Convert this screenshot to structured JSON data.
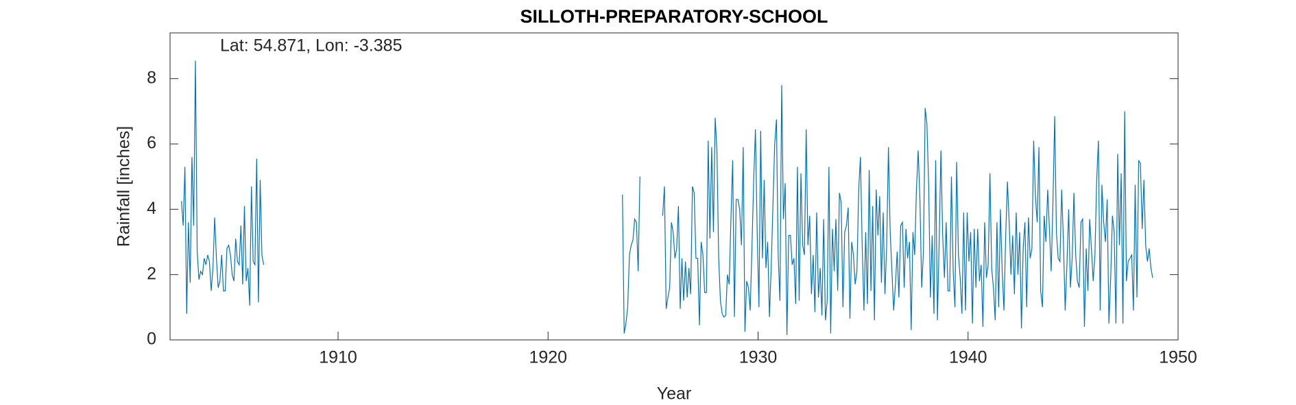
{
  "chart_data": {
    "type": "line",
    "title": "SILLOTH-PREPARATORY-SCHOOL",
    "annotation": "Lat: 54.871, Lon: -3.385",
    "xlabel": "Year",
    "ylabel": "Rainfall [inches]",
    "xlim": [
      1902,
      1950
    ],
    "ylim": [
      0,
      9.4
    ],
    "xticks": [
      1910,
      1920,
      1930,
      1940,
      1950
    ],
    "yticks": [
      0,
      2,
      4,
      6,
      8
    ],
    "x": [
      1902.542,
      1902.625,
      1902.708,
      1902.792,
      1902.875,
      1902.958,
      1903.042,
      1903.125,
      1903.208,
      1903.292,
      1903.375,
      1903.458,
      1903.542,
      1903.625,
      1903.708,
      1903.792,
      1903.875,
      1903.958,
      1904.042,
      1904.125,
      1904.208,
      1904.292,
      1904.375,
      1904.458,
      1904.542,
      1904.625,
      1904.708,
      1904.792,
      1904.875,
      1904.958,
      1905.042,
      1905.125,
      1905.208,
      1905.292,
      1905.375,
      1905.458,
      1905.542,
      1905.625,
      1905.708,
      1905.792,
      1905.875,
      1905.958,
      1906.042,
      1906.125,
      1906.208,
      1906.292,
      1906.375,
      1906.458,
      1914,
      1923.542,
      1923.625,
      1923.708,
      1923.792,
      1923.875,
      1923.958,
      1924.042,
      1924.125,
      1924.208,
      1924.292,
      1924.375,
      1925,
      1925.458,
      1925.542,
      1925.625,
      1925.708,
      1925.792,
      1925.875,
      1925.958,
      1926.042,
      1926.125,
      1926.208,
      1926.292,
      1926.375,
      1926.458,
      1926.542,
      1926.625,
      1926.708,
      1926.792,
      1926.875,
      1926.958,
      1927.042,
      1927.125,
      1927.208,
      1927.292,
      1927.375,
      1927.458,
      1927.542,
      1927.625,
      1927.708,
      1927.792,
      1927.875,
      1927.958,
      1928.042,
      1928.125,
      1928.208,
      1928.292,
      1928.375,
      1928.458,
      1928.542,
      1928.625,
      1928.708,
      1928.792,
      1928.875,
      1928.958,
      1929.042,
      1929.125,
      1929.208,
      1929.292,
      1929.375,
      1929.458,
      1929.542,
      1929.625,
      1929.708,
      1929.792,
      1929.875,
      1929.958,
      1930.042,
      1930.125,
      1930.208,
      1930.292,
      1930.375,
      1930.458,
      1930.542,
      1930.625,
      1930.708,
      1930.792,
      1930.875,
      1930.958,
      1931.042,
      1931.125,
      1931.208,
      1931.292,
      1931.375,
      1931.458,
      1931.542,
      1931.625,
      1931.708,
      1931.792,
      1931.875,
      1931.958,
      1932.042,
      1932.125,
      1932.208,
      1932.292,
      1932.375,
      1932.458,
      1932.542,
      1932.625,
      1932.708,
      1932.792,
      1932.875,
      1932.958,
      1933.042,
      1933.125,
      1933.208,
      1933.292,
      1933.375,
      1933.458,
      1933.542,
      1933.625,
      1933.708,
      1933.792,
      1933.875,
      1933.958,
      1934.042,
      1934.125,
      1934.208,
      1934.292,
      1934.375,
      1934.458,
      1934.542,
      1934.625,
      1934.708,
      1934.792,
      1934.875,
      1934.958,
      1935.042,
      1935.125,
      1935.208,
      1935.292,
      1935.375,
      1935.458,
      1935.542,
      1935.625,
      1935.708,
      1935.792,
      1935.875,
      1935.958,
      1936.042,
      1936.125,
      1936.208,
      1936.292,
      1936.375,
      1936.458,
      1936.542,
      1936.625,
      1936.708,
      1936.792,
      1936.875,
      1936.958,
      1937.042,
      1937.125,
      1937.208,
      1937.292,
      1937.375,
      1937.458,
      1937.542,
      1937.625,
      1937.708,
      1937.792,
      1937.875,
      1937.958,
      1938.042,
      1938.125,
      1938.208,
      1938.292,
      1938.375,
      1938.458,
      1938.542,
      1938.625,
      1938.708,
      1938.792,
      1938.875,
      1938.958,
      1939.042,
      1939.125,
      1939.208,
      1939.292,
      1939.375,
      1939.458,
      1939.542,
      1939.625,
      1939.708,
      1939.792,
      1939.875,
      1939.958,
      1940.042,
      1940.125,
      1940.208,
      1940.292,
      1940.375,
      1940.458,
      1940.542,
      1940.625,
      1940.708,
      1940.792,
      1940.875,
      1940.958,
      1941.042,
      1941.125,
      1941.208,
      1941.292,
      1941.375,
      1941.458,
      1941.542,
      1941.625,
      1941.708,
      1941.792,
      1941.875,
      1941.958,
      1942.042,
      1942.125,
      1942.208,
      1942.292,
      1942.375,
      1942.458,
      1942.542,
      1942.625,
      1942.708,
      1942.792,
      1942.875,
      1942.958,
      1943.042,
      1943.125,
      1943.208,
      1943.292,
      1943.375,
      1943.458,
      1943.542,
      1943.625,
      1943.708,
      1943.792,
      1943.875,
      1943.958,
      1944.042,
      1944.125,
      1944.208,
      1944.292,
      1944.375,
      1944.458,
      1944.542,
      1944.625,
      1944.708,
      1944.792,
      1944.875,
      1944.958,
      1945.042,
      1945.125,
      1945.208,
      1945.292,
      1945.375,
      1945.458,
      1945.542,
      1945.625,
      1945.708,
      1945.792,
      1945.875,
      1945.958,
      1946.042,
      1946.125,
      1946.208,
      1946.292,
      1946.375,
      1946.458,
      1946.542,
      1946.625,
      1946.708,
      1946.792,
      1946.875,
      1946.958,
      1947.042,
      1947.125,
      1947.208,
      1947.292,
      1947.375,
      1947.458,
      1947.542,
      1947.625,
      1947.708,
      1947.792,
      1947.875,
      1947.958,
      1948.042,
      1948.125,
      1948.208,
      1948.292,
      1948.375,
      1948.458,
      1948.542,
      1948.625,
      1948.708,
      1948.792
    ],
    "color": "#0072bd",
    "values": [
      4.25,
      3.5,
      5.3,
      0.8,
      3.6,
      1.75,
      5.6,
      3.5,
      8.55,
      2.7,
      1.85,
      2.1,
      2.0,
      2.5,
      2.3,
      2.6,
      2.4,
      1.5,
      2.2,
      3.75,
      2.5,
      1.6,
      1.8,
      2.6,
      1.5,
      1.5,
      2.8,
      2.9,
      2.6,
      2.0,
      1.8,
      3.1,
      2.4,
      2.3,
      3.5,
      1.7,
      4.1,
      1.8,
      2.2,
      1.05,
      4.7,
      2.4,
      2.3,
      5.55,
      1.15,
      4.9,
      2.6,
      2.3,
      null,
      4.45,
      0.2,
      0.5,
      1.0,
      2.6,
      2.9,
      3.05,
      3.7,
      3.6,
      2.1,
      5.0,
      null,
      3.8,
      4.7,
      0.95,
      1.3,
      1.6,
      3.6,
      3.3,
      2.5,
      2.8,
      4.1,
      0.95,
      2.5,
      1.2,
      2.4,
      1.3,
      2.2,
      1.4,
      4.7,
      4.5,
      2.5,
      2.5,
      0.45,
      3.0,
      2.6,
      1.45,
      1.45,
      6.1,
      3.1,
      5.9,
      3.3,
      6.8,
      5.8,
      2.5,
      1.2,
      0.8,
      0.7,
      0.75,
      2.0,
      1.7,
      3.7,
      5.5,
      0.7,
      4.3,
      4.3,
      4.0,
      2.9,
      5.9,
      0.25,
      1.8,
      1.6,
      0.9,
      2.8,
      4.9,
      6.45,
      3.3,
      1.0,
      6.4,
      2.5,
      4.9,
      2.2,
      3.0,
      0.7,
      2.2,
      4.1,
      6.0,
      6.75,
      2.6,
      1.2,
      7.8,
      3.7,
      4.8,
      0.15,
      3.2,
      3.2,
      2.3,
      2.5,
      1.1,
      5.3,
      1.2,
      5.1,
      2.9,
      2.6,
      6.45,
      2.9,
      3.8,
      1.4,
      2.6,
      0.85,
      3.9,
      1.3,
      2.2,
      0.75,
      3.7,
      0.6,
      1.2,
      5.3,
      0.2,
      3.4,
      2.1,
      3.7,
      1.5,
      4.5,
      4.2,
      1.0,
      3.3,
      3.5,
      4.05,
      0.65,
      3.0,
      2.6,
      1.7,
      2.1,
      4.6,
      5.6,
      2.9,
      0.9,
      3.3,
      1.1,
      5.2,
      1.5,
      4.1,
      0.6,
      4.6,
      3.2,
      4.4,
      1.75,
      3.9,
      1.4,
      2.9,
      5.9,
      3.3,
      2.1,
      0.9,
      1.7,
      2.7,
      1.3,
      3.5,
      3.6,
      1.6,
      3.4,
      2.5,
      3.0,
      0.3,
      3.3,
      2.6,
      4.6,
      5.8,
      4.3,
      1.6,
      2.7,
      7.1,
      6.6,
      4.7,
      1.3,
      3.2,
      0.8,
      5.5,
      0.6,
      3.0,
      5.8,
      3.2,
      1.9,
      3.6,
      1.5,
      1.5,
      5.0,
      2.1,
      1.0,
      5.45,
      2.6,
      1.9,
      0.8,
      3.9,
      0.9,
      3.9,
      2.4,
      3.3,
      0.5,
      3.4,
      1.6,
      3.4,
      1.8,
      2.3,
      0.4,
      3.6,
      1.9,
      2.3,
      5.1,
      2.2,
      1.6,
      0.6,
      3.6,
      1.0,
      4.0,
      2.1,
      0.9,
      3.2,
      4.85,
      3.6,
      2.0,
      3.2,
      1.4,
      3.9,
      2.0,
      3.3,
      0.35,
      2.8,
      3.6,
      1.0,
      3.75,
      2.5,
      2.8,
      6.1,
      4.4,
      3.6,
      5.9,
      1.5,
      1.0,
      3.8,
      3.0,
      4.6,
      3.4,
      2.1,
      4.2,
      6.85,
      3.3,
      2.5,
      2.4,
      4.6,
      3.0,
      0.9,
      2.3,
      4.0,
      1.6,
      2.5,
      4.5,
      2.6,
      1.8,
      1.6,
      3.6,
      3.7,
      0.4,
      2.8,
      1.5,
      3.7,
      2.8,
      1.8,
      2.6,
      4.9,
      6.1,
      0.9,
      4.75,
      3.6,
      3.0,
      4.3,
      0.5,
      1.9,
      3.8,
      3.3,
      0.5,
      5.7,
      2.9,
      5.1,
      0.5,
      7.0,
      1.8,
      2.4,
      2.5,
      2.6,
      0.9,
      4.75,
      1.3,
      5.5,
      5.4,
      3.4,
      4.9,
      2.9,
      2.4,
      2.8,
      2.2,
      1.9
    ]
  }
}
